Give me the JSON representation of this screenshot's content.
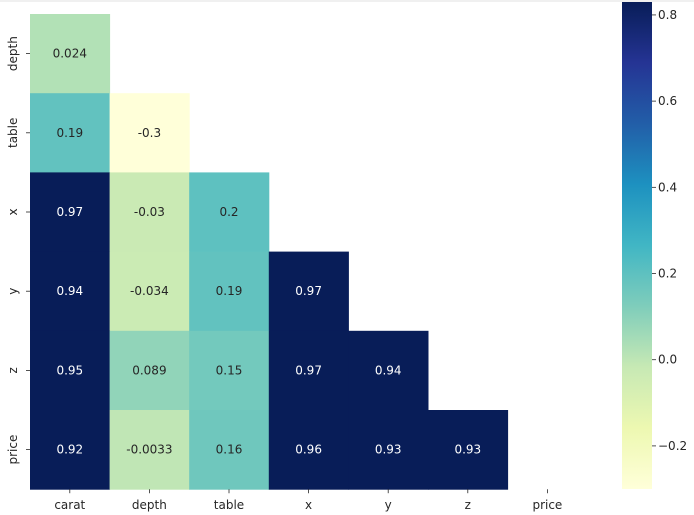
{
  "chart_data": {
    "type": "heatmap",
    "title": "",
    "xlabel": "",
    "ylabel": "",
    "x_labels": [
      "carat",
      "depth",
      "table",
      "x",
      "y",
      "z",
      "price"
    ],
    "y_labels": [
      "depth",
      "table",
      "x",
      "y",
      "z",
      "price"
    ],
    "matrix": [
      [
        0.024,
        null,
        null,
        null,
        null,
        null,
        null
      ],
      [
        0.19,
        -0.3,
        null,
        null,
        null,
        null,
        null
      ],
      [
        0.97,
        -0.03,
        0.2,
        null,
        null,
        null,
        null
      ],
      [
        0.94,
        -0.034,
        0.19,
        0.97,
        null,
        null,
        null
      ],
      [
        0.95,
        0.089,
        0.15,
        0.97,
        0.94,
        null,
        null
      ],
      [
        0.92,
        -0.0033,
        0.16,
        0.96,
        0.93,
        0.93,
        null
      ]
    ],
    "annotations": [
      [
        "0.024",
        "",
        "",
        "",
        "",
        "",
        ""
      ],
      [
        "0.19",
        "-0.3",
        "",
        "",
        "",
        "",
        ""
      ],
      [
        "0.97",
        "-0.03",
        "0.2",
        "",
        "",
        "",
        ""
      ],
      [
        "0.94",
        "-0.034",
        "0.19",
        "0.97",
        "",
        "",
        ""
      ],
      [
        "0.95",
        "0.089",
        "0.15",
        "0.97",
        "0.94",
        "",
        ""
      ],
      [
        "0.92",
        "-0.0033",
        "0.16",
        "0.96",
        "0.93",
        "0.93",
        ""
      ]
    ],
    "colormap": "YlGnBu",
    "vmin": -0.3,
    "vmax": 0.83,
    "colorbar_ticks": [
      0.8,
      0.6,
      0.4,
      0.2,
      0.0,
      -0.2
    ],
    "colorbar_tick_labels": [
      "0.8",
      "0.6",
      "0.4",
      "0.2",
      "0.0",
      "−0.2"
    ],
    "mask": "upper-triangle"
  }
}
